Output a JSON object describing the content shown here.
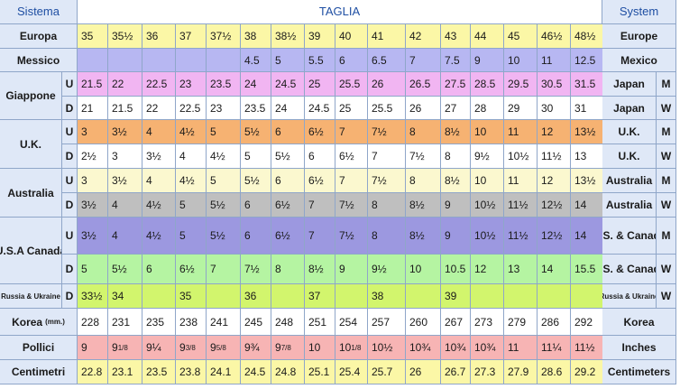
{
  "header": {
    "left": "Sistema",
    "center": "TAGLIA",
    "right": "System"
  },
  "colors": {
    "yellow": "#fbf7a6",
    "lavender": "#b7b7f2",
    "pink": "#f1b5f2",
    "white": "#ffffff",
    "orange": "#f6b272",
    "yellowpale": "#fbf8cf",
    "gray": "#bfbfbf",
    "purple": "#9c98e0",
    "green": "#b5f4a2",
    "lime": "#d2f56d",
    "salmon": "#f7b4b4",
    "label": "#dfe8f7"
  },
  "rows": [
    {
      "id": "europa",
      "left": "Europa",
      "right": "Europe",
      "color": "yellow",
      "values": [
        "35",
        "35½",
        "36",
        "37",
        "37½",
        "38",
        "38½",
        "39",
        "40",
        "41",
        "42",
        "43",
        "44",
        "45",
        "46½",
        "48½"
      ]
    },
    {
      "id": "messico",
      "left": "Messico",
      "right": "Mexico",
      "color": "lavender",
      "values": [
        "",
        "",
        "",
        "",
        "",
        "4.5",
        "5",
        "5.5",
        "6",
        "6.5",
        "7",
        "7.5",
        "9",
        "10",
        "11",
        "12.5"
      ]
    },
    {
      "id": "giappone-u",
      "left": "Giappone",
      "side": "U",
      "right": "Japan",
      "rside": "M",
      "color": "pink",
      "values": [
        "21.5",
        "22",
        "22.5",
        "23",
        "23.5",
        "24",
        "24.5",
        "25",
        "25.5",
        "26",
        "26.5",
        "27.5",
        "28.5",
        "29.5",
        "30.5",
        "31.5"
      ]
    },
    {
      "id": "giappone-d",
      "side": "D",
      "right": "Japan",
      "rside": "W",
      "color": "white",
      "values": [
        "21",
        "21.5",
        "22",
        "22.5",
        "23",
        "23.5",
        "24",
        "24.5",
        "25",
        "25.5",
        "26",
        "27",
        "28",
        "29",
        "30",
        "31"
      ]
    },
    {
      "id": "uk-u",
      "left": "U.K.",
      "side": "U",
      "right": "U.K.",
      "rside": "M",
      "color": "orange",
      "values": [
        "3",
        "3½",
        "4",
        "4½",
        "5",
        "5½",
        "6",
        "6½",
        "7",
        "7½",
        "8",
        "8½",
        "10",
        "11",
        "12",
        "13½"
      ]
    },
    {
      "id": "uk-d",
      "side": "D",
      "right": "U.K.",
      "rside": "W",
      "color": "white",
      "values": [
        "2½",
        "3",
        "3½",
        "4",
        "4½",
        "5",
        "5½",
        "6",
        "6½",
        "7",
        "7½",
        "8",
        "9½",
        "10½",
        "11½",
        "13"
      ]
    },
    {
      "id": "au-u",
      "left": "Australia",
      "side": "U",
      "right": "Australia",
      "rside": "M",
      "color": "yellowpale",
      "values": [
        "3",
        "3½",
        "4",
        "4½",
        "5",
        "5½",
        "6",
        "6½",
        "7",
        "7½",
        "8",
        "8½",
        "10",
        "11",
        "12",
        "13½"
      ]
    },
    {
      "id": "au-d",
      "side": "D",
      "right": "Australia",
      "rside": "W",
      "color": "gray",
      "values": [
        "3½",
        "4",
        "4½",
        "5",
        "5½",
        "6",
        "6½",
        "7",
        "7½",
        "8",
        "8½",
        "9",
        "10½",
        "11½",
        "12½",
        "14"
      ]
    },
    {
      "id": "usa-u",
      "left": "U.S.A Canada",
      "side": "U",
      "right": "U.S. & Canada",
      "rside": "M",
      "color": "purple",
      "values": [
        "3½",
        "4",
        "4½",
        "5",
        "5½",
        "6",
        "6½",
        "7",
        "7½",
        "8",
        "8½",
        "9",
        "10½",
        "11½",
        "12½",
        "14"
      ]
    },
    {
      "id": "usa-d",
      "side": "D",
      "right": "U.S. & Canada",
      "rside": "W",
      "color": "green",
      "values": [
        "5",
        "5½",
        "6",
        "6½",
        "7",
        "7½",
        "8",
        "8½",
        "9",
        "9½",
        "10",
        "10.5",
        "12",
        "13",
        "14",
        "15.5"
      ]
    },
    {
      "id": "russia",
      "left": "Russia & Ukraine",
      "side": "D",
      "right": "Russia & Ukraine",
      "rside": "W",
      "color": "lime",
      "values": [
        "33½",
        "34",
        "",
        "35",
        "",
        "36",
        "",
        "37",
        "",
        "38",
        "",
        "39",
        "",
        "",
        "",
        ""
      ]
    },
    {
      "id": "korea",
      "left": "Korea",
      "leftunit": "(mm.)",
      "right": "Korea",
      "color": "white",
      "values": [
        "228",
        "231",
        "235",
        "238",
        "241",
        "245",
        "248",
        "251",
        "254",
        "257",
        "260",
        "267",
        "273",
        "279",
        "286",
        "292"
      ]
    },
    {
      "id": "pollici",
      "left": "Pollici",
      "right": "Inches",
      "color": "salmon",
      "values": [
        "9",
        "9 1/8",
        "9¼",
        "9 3/8",
        "9 5/8",
        "9¾",
        "9 7/8",
        "10",
        "10 1/8",
        "10½",
        "10¾",
        "10¾",
        "10¾",
        "11",
        "11¼",
        "11½"
      ]
    },
    {
      "id": "centimetri",
      "left": "Centimetri",
      "right": "Centimeters",
      "color": "yellow",
      "values": [
        "22.8",
        "23.1",
        "23.5",
        "23.8",
        "24.1",
        "24.5",
        "24.8",
        "25.1",
        "25.4",
        "25.7",
        "26",
        "26.7",
        "27.3",
        "27.9",
        "28.6",
        "29.2"
      ]
    }
  ]
}
